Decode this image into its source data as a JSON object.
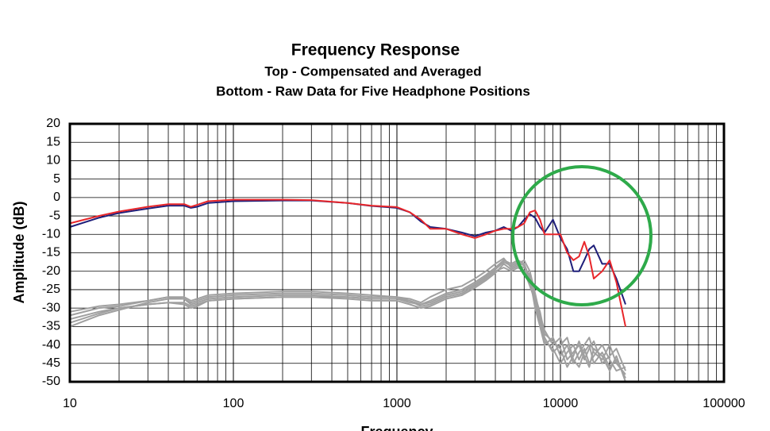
{
  "chart_data": {
    "type": "line",
    "title": "Frequency Response",
    "subtitle": [
      "Top -  Compensated and Averaged",
      "Bottom - Raw Data for Five Headphone Positions"
    ],
    "xlabel": "Frequency",
    "ylabel": "Amplitude (dB)",
    "xscale": "log",
    "grid": true,
    "xlim": [
      10,
      100000
    ],
    "ylim": [
      -50,
      20
    ],
    "xticks": [
      10,
      100,
      1000,
      10000,
      100000
    ],
    "xgrid_minor": [
      20,
      30,
      40,
      50,
      60,
      70,
      80,
      90,
      200,
      300,
      400,
      500,
      600,
      700,
      800,
      900,
      2000,
      3000,
      4000,
      5000,
      6000,
      7000,
      8000,
      9000,
      20000,
      30000,
      40000,
      50000,
      60000,
      70000,
      80000,
      90000
    ],
    "yticks": [
      20,
      15,
      10,
      5,
      0,
      -5,
      -10,
      -15,
      -20,
      -25,
      -30,
      -35,
      -40,
      -45,
      -50
    ],
    "x": [
      10,
      15,
      20,
      30,
      40,
      50,
      55,
      60,
      70,
      100,
      200,
      300,
      500,
      700,
      1000,
      1200,
      1400,
      1600,
      2000,
      2500,
      3000,
      3500,
      4000,
      4500,
      5000,
      5500,
      6000,
      6500,
      7000,
      7500,
      8000,
      9000,
      10000,
      11000,
      12000,
      13000,
      14000,
      15000,
      16000,
      18000,
      20000,
      22000,
      25000
    ],
    "series": [
      {
        "color": "#a0a0a0",
        "values": [
          -33,
          -31,
          -30,
          -29,
          -28.5,
          -28.5,
          -29.5,
          -29,
          -28,
          -27.5,
          -27,
          -27,
          -27,
          -27.5,
          -27.5,
          -28,
          -29,
          -28,
          -26,
          -25,
          -23,
          -21,
          -19,
          -17,
          -18,
          -17,
          -18,
          -22,
          -30,
          -35,
          -40,
          -38,
          -43,
          -40,
          -45,
          -42,
          -40,
          -38,
          -42,
          -44,
          -40,
          -45,
          -48
        ]
      },
      {
        "color": "#a0a0a0",
        "values": [
          -35,
          -32,
          -30.5,
          -28.5,
          -27.5,
          -27.5,
          -28.5,
          -28,
          -27,
          -26.5,
          -26,
          -26,
          -26.5,
          -27,
          -27,
          -27.5,
          -28.5,
          -27,
          -25,
          -24,
          -22,
          -20,
          -18,
          -16.5,
          -19,
          -18,
          -17,
          -20,
          -26,
          -32,
          -36,
          -40,
          -38,
          -44,
          -42,
          -40,
          -44,
          -41,
          -39,
          -45,
          -43,
          -41,
          -47
        ]
      },
      {
        "color": "#a0a0a0",
        "values": [
          -31,
          -29.5,
          -29,
          -28,
          -27,
          -27,
          -28,
          -27.5,
          -26.5,
          -26,
          -25.5,
          -25.5,
          -26,
          -26.5,
          -27,
          -28,
          -29.5,
          -29,
          -27,
          -26,
          -24,
          -22,
          -20,
          -19,
          -20,
          -19,
          -20,
          -24,
          -28,
          -33,
          -38,
          -42,
          -40,
          -38,
          -44,
          -46,
          -42,
          -40,
          -45,
          -42,
          -46,
          -44,
          -49
        ]
      },
      {
        "color": "#a0a0a0",
        "values": [
          -34,
          -31.5,
          -30,
          -29,
          -28.5,
          -29,
          -30,
          -29.5,
          -28,
          -27.5,
          -27,
          -27,
          -27.5,
          -28,
          -28,
          -29,
          -30,
          -29.5,
          -27.5,
          -26.5,
          -24.5,
          -22.5,
          -20.5,
          -18,
          -19.5,
          -18.5,
          -19,
          -21,
          -29,
          -34,
          -39,
          -41,
          -45,
          -42,
          -40,
          -44,
          -41,
          -45,
          -43,
          -40,
          -44,
          -47,
          -46
        ]
      },
      {
        "color": "#a0a0a0",
        "values": [
          -32,
          -30,
          -29.5,
          -28,
          -27,
          -27.5,
          -29,
          -28.5,
          -27.5,
          -27,
          -26.5,
          -26.5,
          -27,
          -27.5,
          -27.5,
          -28.5,
          -29,
          -28.5,
          -26.5,
          -25.5,
          -23.5,
          -21.5,
          -19.5,
          -17.5,
          -18.5,
          -17.5,
          -18.5,
          -23,
          -27,
          -31,
          -37,
          -39,
          -41,
          -46,
          -43,
          -39,
          -43,
          -46,
          -41,
          -43,
          -47,
          -43,
          -50
        ]
      },
      {
        "color": "#1f1f7a",
        "values": [
          -8,
          -5.5,
          -4.2,
          -3,
          -2.2,
          -2.2,
          -2.8,
          -2.5,
          -1.5,
          -1,
          -0.8,
          -0.8,
          -1.5,
          -2.3,
          -2.8,
          -4,
          -6.5,
          -8,
          -8.5,
          -9.5,
          -10.5,
          -9.5,
          -9,
          -8,
          -9,
          -8,
          -6,
          -4.5,
          -5.5,
          -8,
          -9.5,
          -6,
          -11,
          -14,
          -20,
          -20,
          -17,
          -14,
          -13,
          -18,
          -18,
          -22,
          -29
        ]
      },
      {
        "color": "#e8262a",
        "values": [
          -7,
          -5,
          -3.8,
          -2.5,
          -1.8,
          -1.8,
          -2.5,
          -2,
          -1,
          -0.6,
          -0.6,
          -0.7,
          -1.5,
          -2.2,
          -2.6,
          -4,
          -6,
          -8.5,
          -8.5,
          -10,
          -11,
          -10,
          -9,
          -8.5,
          -8.5,
          -8,
          -7,
          -4,
          -3.5,
          -6,
          -10,
          -10,
          -10,
          -15,
          -17,
          -16,
          -12,
          -16,
          -22,
          -20,
          -17,
          -23,
          -35
        ]
      }
    ]
  }
}
